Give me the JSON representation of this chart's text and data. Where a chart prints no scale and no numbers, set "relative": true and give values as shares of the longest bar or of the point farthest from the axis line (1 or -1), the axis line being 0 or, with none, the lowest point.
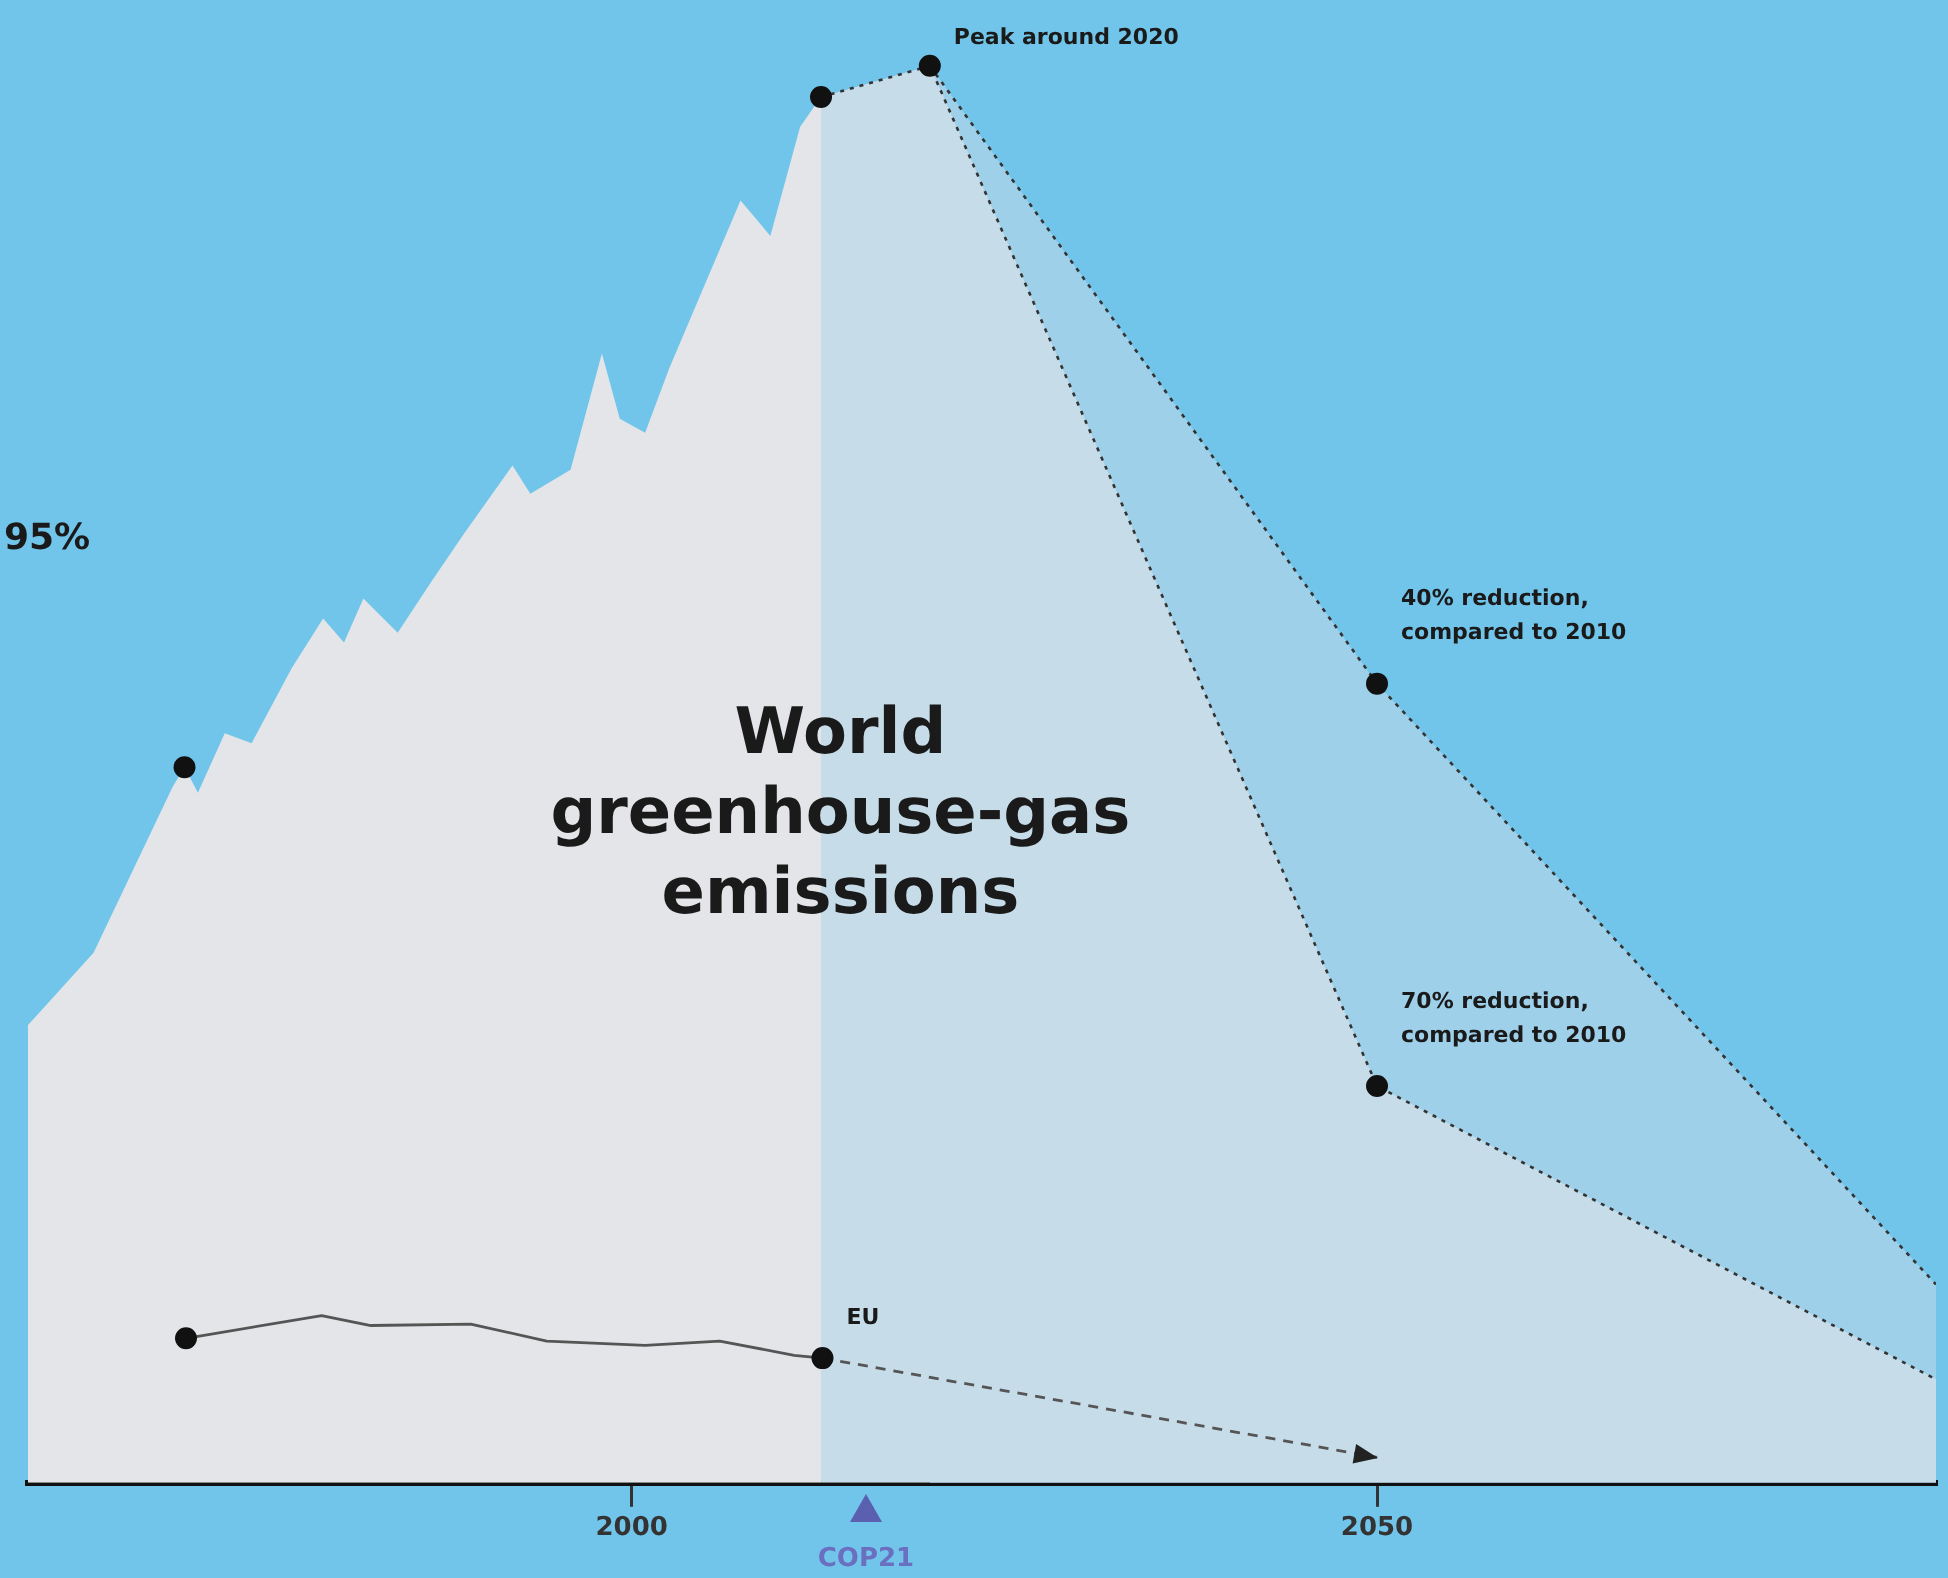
{
  "chart_data": {
    "type": "area",
    "title": "World greenhouse-gas emissions",
    "relative": true,
    "xlim": [
      1959.5,
      2087.5
    ],
    "xticks": [
      2000,
      2050
    ],
    "grid": false,
    "legend": false,
    "series": [
      {
        "color": "#e3e5e8",
        "x": [
          1959.5,
          1963.9,
          1969.2,
          1970,
          1970.9,
          1972.7,
          1974.5,
          1977.2,
          1979.3,
          1980.7,
          1982,
          1984.3,
          1986.5,
          1988.7,
          1992,
          1993.2,
          1995.9,
          1998,
          1999.2,
          2000.9,
          2002.5,
          2007.3,
          2009.3,
          2011.3,
          2012.7
        ],
        "values": [
          0.323,
          0.374,
          0.491,
          0.505,
          0.487,
          0.529,
          0.522,
          0.575,
          0.61,
          0.593,
          0.624,
          0.6,
          0.635,
          0.669,
          0.718,
          0.698,
          0.715,
          0.797,
          0.751,
          0.741,
          0.786,
          0.905,
          0.88,
          0.957,
          0.978
        ]
      },
      {
        "type": "area",
        "color": "#9fd0ea",
        "line_style": "dotted",
        "x": [
          2020,
          2050,
          2087.5
        ],
        "values": [
          1,
          0.564,
          0.14
        ]
      },
      {
        "type": "area",
        "color": "#c6dde9",
        "line_style": "dotted",
        "x": [
          2012.7,
          2020,
          2050,
          2087.5
        ],
        "values": [
          0.978,
          1,
          0.28,
          0.073
        ]
      },
      {
        "type": "line",
        "color": "#555555",
        "line_style": "solid",
        "x": [
          1970.1,
          1979.2,
          1982.5,
          1989.2,
          1994.3,
          2000.9,
          2005.9,
          2010.9,
          2012.8
        ],
        "values": [
          0.102,
          0.118,
          0.111,
          0.112,
          0.1,
          0.097,
          0.1,
          0.09,
          0.088
        ]
      },
      {
        "type": "line",
        "color": "#555555",
        "line_style": "dashed",
        "x": [
          2012.8,
          2050
        ],
        "values": [
          0.088,
          0.018
        ]
      },
      {
        "type": "scatter",
        "color": "#111111",
        "marker": "circle",
        "x": [
          1970,
          2012.7,
          2020,
          2050,
          2050,
          1970.1,
          2012.8
        ],
        "values": [
          0.505,
          0.978,
          1,
          0.564,
          0.28,
          0.102,
          0.088
        ]
      }
    ],
    "annotations": [
      {
        "text": "Peak around 2020",
        "x": 2020,
        "y": 1
      },
      {
        "text": "40% reduction, compared to 2010",
        "x": 2050,
        "y": 0.564
      },
      {
        "text": "70% reduction, compared to 2010",
        "x": 2050,
        "y": 0.28
      },
      {
        "text": "EU",
        "x": 2012.8,
        "y": 0.088
      },
      "COP21",
      "95%"
    ]
  }
}
